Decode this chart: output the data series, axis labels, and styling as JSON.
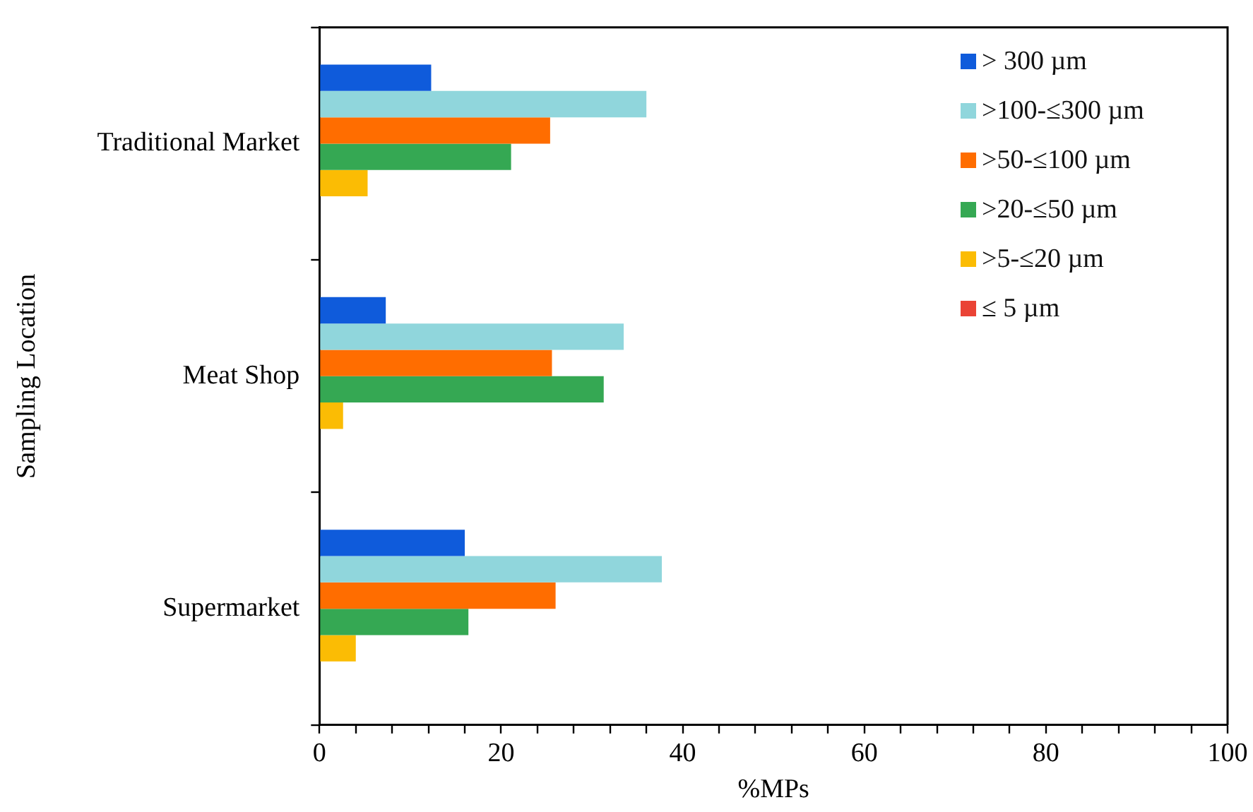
{
  "chart_data": {
    "type": "bar",
    "orientation": "horizontal",
    "xlabel": "%MPs",
    "ylabel": "Sampling Location",
    "categories": [
      "Traditional Market",
      "Meat Shop",
      "Supermarket"
    ],
    "series": [
      {
        "name": "> 300 µm",
        "color": "#0f5bdb",
        "values": [
          12.3,
          7.3,
          16.0
        ]
      },
      {
        "name": ">100-≤300 µm",
        "color": "#90d6dc",
        "values": [
          36.0,
          33.5,
          37.7
        ]
      },
      {
        "name": ">50-≤100 µm",
        "color": "#ff6d00",
        "values": [
          25.4,
          25.6,
          26.0
        ]
      },
      {
        "name": ">20-≤50 µm",
        "color": "#35a853",
        "values": [
          21.1,
          31.3,
          16.4
        ]
      },
      {
        "name": ">5-≤20 µm",
        "color": "#fbbc04",
        "values": [
          5.3,
          2.6,
          4.0
        ]
      },
      {
        "name": "≤ 5 µm",
        "color": "#ea4335",
        "values": [
          0,
          0,
          0
        ]
      }
    ],
    "xlim": [
      0,
      100
    ],
    "xticks": [
      0,
      {
        "value": 4,
        "label": null
      },
      {
        "value": 8,
        "label": null
      },
      {
        "value": 12,
        "label": null
      },
      {
        "value": 16,
        "label": null
      },
      20,
      {
        "value": 24,
        "label": null
      },
      {
        "value": 28,
        "label": null
      },
      {
        "value": 32,
        "label": null
      },
      {
        "value": 36,
        "label": null
      },
      40,
      {
        "value": 44,
        "label": null
      },
      {
        "value": 48,
        "label": null
      },
      {
        "value": 52,
        "label": null
      },
      {
        "value": 56,
        "label": null
      },
      60,
      {
        "value": 64,
        "label": null
      },
      {
        "value": 68,
        "label": null
      },
      {
        "value": 72,
        "label": null
      },
      {
        "value": 76,
        "label": null
      },
      80,
      {
        "value": 84,
        "label": null
      },
      {
        "value": 88,
        "label": null
      },
      {
        "value": 92,
        "label": null
      },
      {
        "value": 96,
        "label": null
      },
      100
    ],
    "grid": false,
    "legend": "top right"
  }
}
